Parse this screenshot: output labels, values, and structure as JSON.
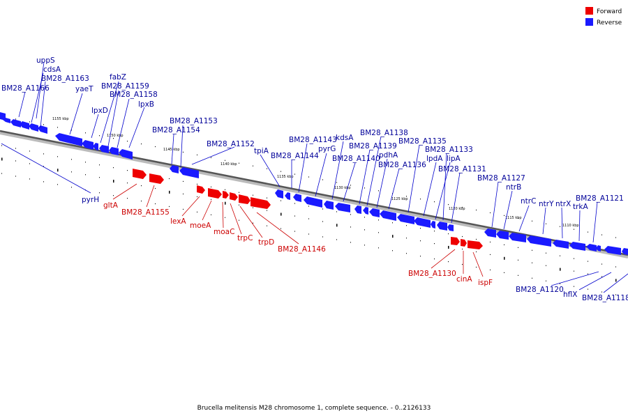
{
  "caption": "Brucella melitensis M28 chromosome 1, complete sequence. - 0..2126133",
  "legend": [
    {
      "label": "Forward",
      "color": "#ee0000"
    },
    {
      "label": "Reverse",
      "color": "#1a1aff"
    }
  ],
  "ticks": [
    "1155 kbp",
    "1150 kbp",
    "1145 kbp",
    "1140 kbp",
    "1135 kbp",
    "1130 kbp",
    "1125 kbp",
    "1120 kbp",
    "1115 kbp",
    "1110 kbp"
  ],
  "reverse_genes": [
    "uppS",
    "cdsA",
    "BM28_A1163",
    "BM28_A1166",
    "yaeT",
    "fabZ",
    "BM28_A1159",
    "BM28_A1158",
    "lpxD",
    "lpxB",
    "BM28_A1153",
    "BM28_A1154",
    "BM28_A1152",
    "tpiA",
    "BM28_A1144",
    "BM28_A1143",
    "pyrG",
    "kdsA",
    "BM28_A1140",
    "BM28_A1139",
    "BM28_A1138",
    "pdhA",
    "BM28_A1136",
    "BM28_A1135",
    "lpdA",
    "lipA",
    "BM28_A1133",
    "BM28_A1131",
    "BM28_A1127",
    "ntrB",
    "ntrC",
    "ntrY",
    "ntrX",
    "trkA",
    "BM28_A1121",
    "pyrH",
    "BM28_A1120",
    "hflX",
    "BM28_A1118"
  ],
  "forward_genes": [
    "gltA",
    "BM28_A1155",
    "lexA",
    "moeA",
    "moaC",
    "trpC",
    "trpD",
    "BM28_A1146",
    "BM28_A1130",
    "cinA",
    "ispF"
  ]
}
